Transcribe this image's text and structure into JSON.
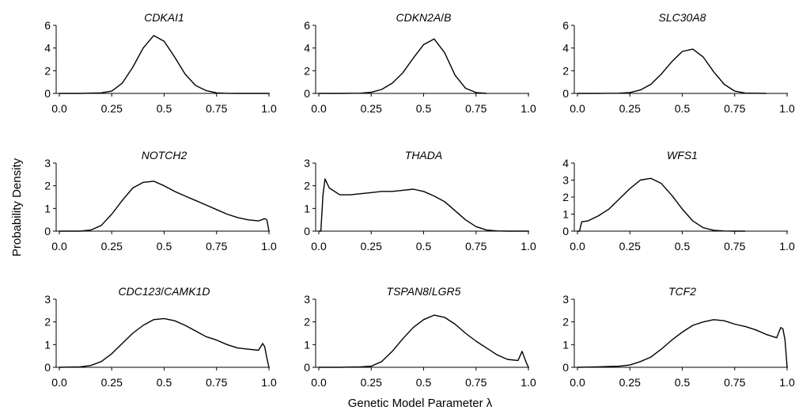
{
  "figure": {
    "ylabel": "Probability Density",
    "xlabel": "Genetic  Model Parameter λ"
  },
  "chart_data": [
    {
      "type": "line",
      "title": "CDKAI1",
      "title_parts": [
        "CDKAI1"
      ],
      "xlim": [
        0,
        1
      ],
      "ylim": [
        0,
        6
      ],
      "xticks": [
        "0.0",
        "0.25",
        "0.5",
        "0.75",
        "1.0"
      ],
      "yticks": [
        "0",
        "2",
        "4",
        "6"
      ],
      "x": [
        0,
        0.1,
        0.2,
        0.25,
        0.3,
        0.35,
        0.4,
        0.45,
        0.5,
        0.55,
        0.6,
        0.65,
        0.7,
        0.75,
        0.8,
        0.85,
        0.9,
        1.0
      ],
      "y": [
        0,
        0,
        0.05,
        0.2,
        0.9,
        2.3,
        4.0,
        5.1,
        4.6,
        3.2,
        1.7,
        0.7,
        0.25,
        0.05,
        0.01,
        0,
        0,
        0
      ]
    },
    {
      "type": "line",
      "title": "CDKN2A/B",
      "title_parts": [
        "CDKN2A",
        "/",
        "B"
      ],
      "xlim": [
        0,
        1
      ],
      "ylim": [
        0,
        6
      ],
      "xticks": [
        "0.0",
        "0.25",
        "0.5",
        "0.75",
        "1.0"
      ],
      "yticks": [
        "0",
        "2",
        "4",
        "6"
      ],
      "x": [
        0,
        0.1,
        0.2,
        0.25,
        0.3,
        0.35,
        0.4,
        0.45,
        0.5,
        0.55,
        0.6,
        0.65,
        0.7,
        0.75,
        0.8
      ],
      "y": [
        0,
        0,
        0.02,
        0.1,
        0.35,
        0.9,
        1.8,
        3.1,
        4.3,
        4.8,
        3.6,
        1.6,
        0.45,
        0.08,
        0
      ]
    },
    {
      "type": "line",
      "title": "SLC30A8",
      "title_parts": [
        "SLC30A8"
      ],
      "xlim": [
        0,
        1
      ],
      "ylim": [
        0,
        6
      ],
      "xticks": [
        "0.0",
        "0.25",
        "0.5",
        "0.75",
        "1.0"
      ],
      "yticks": [
        "0",
        "2",
        "4",
        "6"
      ],
      "x": [
        0,
        0.1,
        0.2,
        0.25,
        0.3,
        0.35,
        0.4,
        0.45,
        0.5,
        0.55,
        0.6,
        0.65,
        0.7,
        0.75,
        0.8,
        0.9
      ],
      "y": [
        0,
        0,
        0.02,
        0.08,
        0.3,
        0.8,
        1.7,
        2.8,
        3.7,
        3.9,
        3.2,
        1.9,
        0.8,
        0.2,
        0.03,
        0
      ]
    },
    {
      "type": "line",
      "title": "NOTCH2",
      "title_parts": [
        "NOTCH2"
      ],
      "xlim": [
        0,
        1
      ],
      "ylim": [
        0,
        3
      ],
      "xticks": [
        "0.0",
        "0.25",
        "0.5",
        "0.75",
        "1.0"
      ],
      "yticks": [
        "0",
        "1",
        "2",
        "3"
      ],
      "x": [
        0,
        0.1,
        0.15,
        0.2,
        0.25,
        0.3,
        0.35,
        0.4,
        0.45,
        0.5,
        0.55,
        0.6,
        0.65,
        0.7,
        0.75,
        0.8,
        0.85,
        0.9,
        0.95,
        0.98,
        0.99,
        1.0
      ],
      "y": [
        0,
        0,
        0.05,
        0.25,
        0.75,
        1.35,
        1.9,
        2.15,
        2.2,
        2.0,
        1.75,
        1.55,
        1.35,
        1.15,
        0.95,
        0.75,
        0.6,
        0.5,
        0.45,
        0.55,
        0.5,
        0
      ]
    },
    {
      "type": "line",
      "title": "THADA",
      "title_parts": [
        "THADA"
      ],
      "xlim": [
        0,
        1
      ],
      "ylim": [
        0,
        3
      ],
      "xticks": [
        "0.0",
        "0.25",
        "0.5",
        "0.75",
        "1.0"
      ],
      "yticks": [
        "0",
        "1",
        "2",
        "3"
      ],
      "x": [
        0,
        0.01,
        0.02,
        0.03,
        0.05,
        0.1,
        0.15,
        0.2,
        0.25,
        0.3,
        0.35,
        0.4,
        0.45,
        0.5,
        0.55,
        0.6,
        0.65,
        0.7,
        0.75,
        0.8,
        0.85,
        0.9,
        1.0
      ],
      "y": [
        0,
        0,
        1.6,
        2.3,
        1.9,
        1.6,
        1.6,
        1.65,
        1.7,
        1.75,
        1.75,
        1.8,
        1.85,
        1.75,
        1.55,
        1.3,
        0.9,
        0.5,
        0.2,
        0.05,
        0.01,
        0,
        0
      ]
    },
    {
      "type": "line",
      "title": "WFS1",
      "title_parts": [
        "WFS1"
      ],
      "xlim": [
        0,
        1
      ],
      "ylim": [
        0,
        4
      ],
      "xticks": [
        "0.0",
        "0.25",
        "0.5",
        "0.75",
        "1.0"
      ],
      "yticks": [
        "0",
        "1",
        "2",
        "3",
        "4"
      ],
      "x": [
        0,
        0.01,
        0.02,
        0.05,
        0.1,
        0.15,
        0.2,
        0.25,
        0.3,
        0.35,
        0.4,
        0.45,
        0.5,
        0.55,
        0.6,
        0.65,
        0.7,
        0.75,
        0.8
      ],
      "y": [
        0,
        0,
        0.55,
        0.6,
        0.9,
        1.3,
        1.9,
        2.5,
        3.0,
        3.1,
        2.8,
        2.1,
        1.3,
        0.6,
        0.2,
        0.05,
        0.01,
        0,
        0
      ]
    },
    {
      "type": "line",
      "title": "CDC123/CAMK1D",
      "title_parts": [
        "CDC123",
        "/",
        "CAMK1D"
      ],
      "xlim": [
        0,
        1
      ],
      "ylim": [
        0,
        3
      ],
      "xticks": [
        "0.0",
        "0.25",
        "0.5",
        "0.75",
        "1.0"
      ],
      "yticks": [
        "0",
        "1",
        "2",
        "3"
      ],
      "x": [
        0,
        0.1,
        0.15,
        0.2,
        0.25,
        0.3,
        0.35,
        0.4,
        0.45,
        0.5,
        0.55,
        0.6,
        0.65,
        0.7,
        0.75,
        0.8,
        0.85,
        0.9,
        0.95,
        0.97,
        0.98,
        0.99,
        1.0
      ],
      "y": [
        0,
        0.02,
        0.08,
        0.25,
        0.6,
        1.05,
        1.5,
        1.85,
        2.1,
        2.15,
        2.05,
        1.85,
        1.6,
        1.35,
        1.2,
        1.0,
        0.85,
        0.8,
        0.75,
        1.05,
        0.9,
        0.4,
        0
      ]
    },
    {
      "type": "line",
      "title": "TSPAN8/LGR5",
      "title_parts": [
        "TSPAN8",
        "/",
        "LGR5"
      ],
      "xlim": [
        0,
        1
      ],
      "ylim": [
        0,
        3
      ],
      "xticks": [
        "0.0",
        "0.25",
        "0.5",
        "0.75",
        "1.0"
      ],
      "yticks": [
        "0",
        "1",
        "2",
        "3"
      ],
      "x": [
        0,
        0.1,
        0.2,
        0.25,
        0.3,
        0.35,
        0.4,
        0.45,
        0.5,
        0.55,
        0.6,
        0.65,
        0.7,
        0.75,
        0.8,
        0.85,
        0.9,
        0.95,
        0.97,
        0.98,
        0.99,
        1.0
      ],
      "y": [
        0,
        0,
        0.02,
        0.05,
        0.25,
        0.7,
        1.25,
        1.75,
        2.1,
        2.3,
        2.2,
        1.9,
        1.5,
        1.15,
        0.85,
        0.55,
        0.35,
        0.3,
        0.7,
        0.45,
        0.2,
        0
      ]
    },
    {
      "type": "line",
      "title": "TCF2",
      "title_parts": [
        "TCF2"
      ],
      "xlim": [
        0,
        1
      ],
      "ylim": [
        0,
        3
      ],
      "xticks": [
        "0.0",
        "0.25",
        "0.5",
        "0.75",
        "1.0"
      ],
      "yticks": [
        "0",
        "1",
        "2",
        "3"
      ],
      "x": [
        0,
        0.1,
        0.2,
        0.25,
        0.3,
        0.35,
        0.4,
        0.45,
        0.5,
        0.55,
        0.6,
        0.65,
        0.7,
        0.75,
        0.8,
        0.85,
        0.9,
        0.95,
        0.97,
        0.98,
        0.99,
        1.0
      ],
      "y": [
        0,
        0.02,
        0.05,
        0.1,
        0.25,
        0.45,
        0.8,
        1.2,
        1.55,
        1.85,
        2.0,
        2.1,
        2.05,
        1.9,
        1.8,
        1.65,
        1.45,
        1.3,
        1.75,
        1.7,
        1.2,
        0
      ]
    }
  ]
}
